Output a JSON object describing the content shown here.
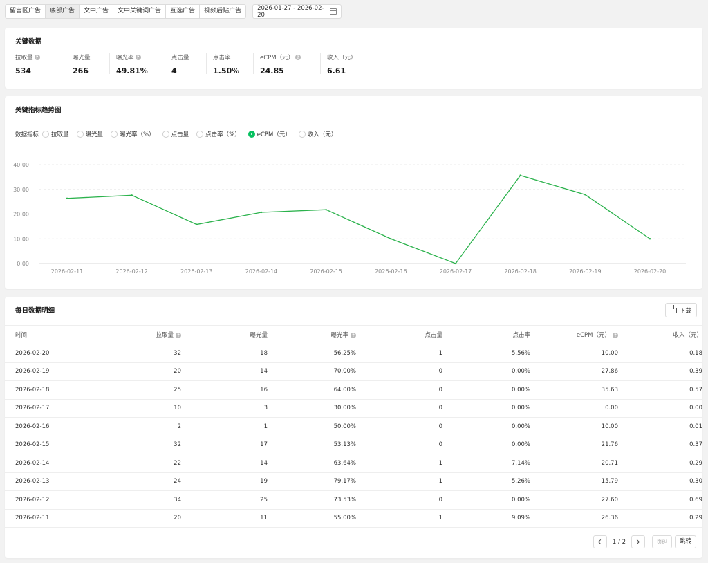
{
  "tabs": [
    "留言区广告",
    "底部广告",
    "文中广告",
    "文中关键词广告",
    "互选广告",
    "视频后贴广告"
  ],
  "date_range": "2026-01-27 - 2026-02-20",
  "key_data": {
    "title": "关键数据",
    "metrics": [
      {
        "label": "拉取量",
        "value": "534",
        "help": true
      },
      {
        "label": "曝光量",
        "value": "266",
        "help": false
      },
      {
        "label": "曝光率",
        "value": "49.81%",
        "help": true
      },
      {
        "label": "点击量",
        "value": "4",
        "help": false
      },
      {
        "label": "点击率",
        "value": "1.50%",
        "help": false
      },
      {
        "label": "eCPM（元）",
        "value": "24.85",
        "help": true
      },
      {
        "label": "收入（元）",
        "value": "6.61",
        "help": false
      }
    ]
  },
  "trend": {
    "title": "关键指标趋势图",
    "selector_label": "数据指标",
    "options": [
      "拉取量",
      "曝光量",
      "曝光率（%）",
      "点击量",
      "点击率（%）",
      "eCPM（元）",
      "收入（元）"
    ],
    "selected": "eCPM（元）"
  },
  "chart_data": {
    "type": "line",
    "title": "",
    "xlabel": "",
    "ylabel": "",
    "x": [
      "2026-02-11",
      "2026-02-12",
      "2026-02-13",
      "2026-02-14",
      "2026-02-15",
      "2026-02-16",
      "2026-02-17",
      "2026-02-18",
      "2026-02-19",
      "2026-02-20"
    ],
    "series": [
      {
        "values": [
          26.36,
          27.6,
          15.79,
          20.71,
          21.76,
          10.0,
          0.0,
          35.63,
          27.86,
          10.0
        ],
        "color": "#2bb24c"
      }
    ],
    "ylim": [
      0,
      40
    ],
    "yticks": [
      "0.00",
      "10.00",
      "20.00",
      "30.00",
      "40.00"
    ],
    "grid": true,
    "legend": "none"
  },
  "daily": {
    "title": "每日数据明细",
    "download_label": "下载",
    "columns": [
      {
        "label": "时间",
        "help": false
      },
      {
        "label": "拉取量",
        "help": true
      },
      {
        "label": "曝光量",
        "help": false
      },
      {
        "label": "曝光率",
        "help": true
      },
      {
        "label": "点击量",
        "help": false
      },
      {
        "label": "点击率",
        "help": false
      },
      {
        "label": "eCPM（元）",
        "help": true
      },
      {
        "label": "收入（元）",
        "help": false
      }
    ],
    "rows": [
      [
        "2026-02-20",
        "32",
        "18",
        "56.25%",
        "1",
        "5.56%",
        "10.00",
        "0.18"
      ],
      [
        "2026-02-19",
        "20",
        "14",
        "70.00%",
        "0",
        "0.00%",
        "27.86",
        "0.39"
      ],
      [
        "2026-02-18",
        "25",
        "16",
        "64.00%",
        "0",
        "0.00%",
        "35.63",
        "0.57"
      ],
      [
        "2026-02-17",
        "10",
        "3",
        "30.00%",
        "0",
        "0.00%",
        "0.00",
        "0.00"
      ],
      [
        "2026-02-16",
        "2",
        "1",
        "50.00%",
        "0",
        "0.00%",
        "10.00",
        "0.01"
      ],
      [
        "2026-02-15",
        "32",
        "17",
        "53.13%",
        "0",
        "0.00%",
        "21.76",
        "0.37"
      ],
      [
        "2026-02-14",
        "22",
        "14",
        "63.64%",
        "1",
        "7.14%",
        "20.71",
        "0.29"
      ],
      [
        "2026-02-13",
        "24",
        "19",
        "79.17%",
        "1",
        "5.26%",
        "15.79",
        "0.30"
      ],
      [
        "2026-02-12",
        "34",
        "25",
        "73.53%",
        "0",
        "0.00%",
        "27.60",
        "0.69"
      ],
      [
        "2026-02-11",
        "20",
        "11",
        "55.00%",
        "1",
        "9.09%",
        "26.36",
        "0.29"
      ]
    ],
    "pagination": {
      "info": "1 / 2",
      "page_placeholder": "页码",
      "jump_label": "跳转"
    }
  }
}
